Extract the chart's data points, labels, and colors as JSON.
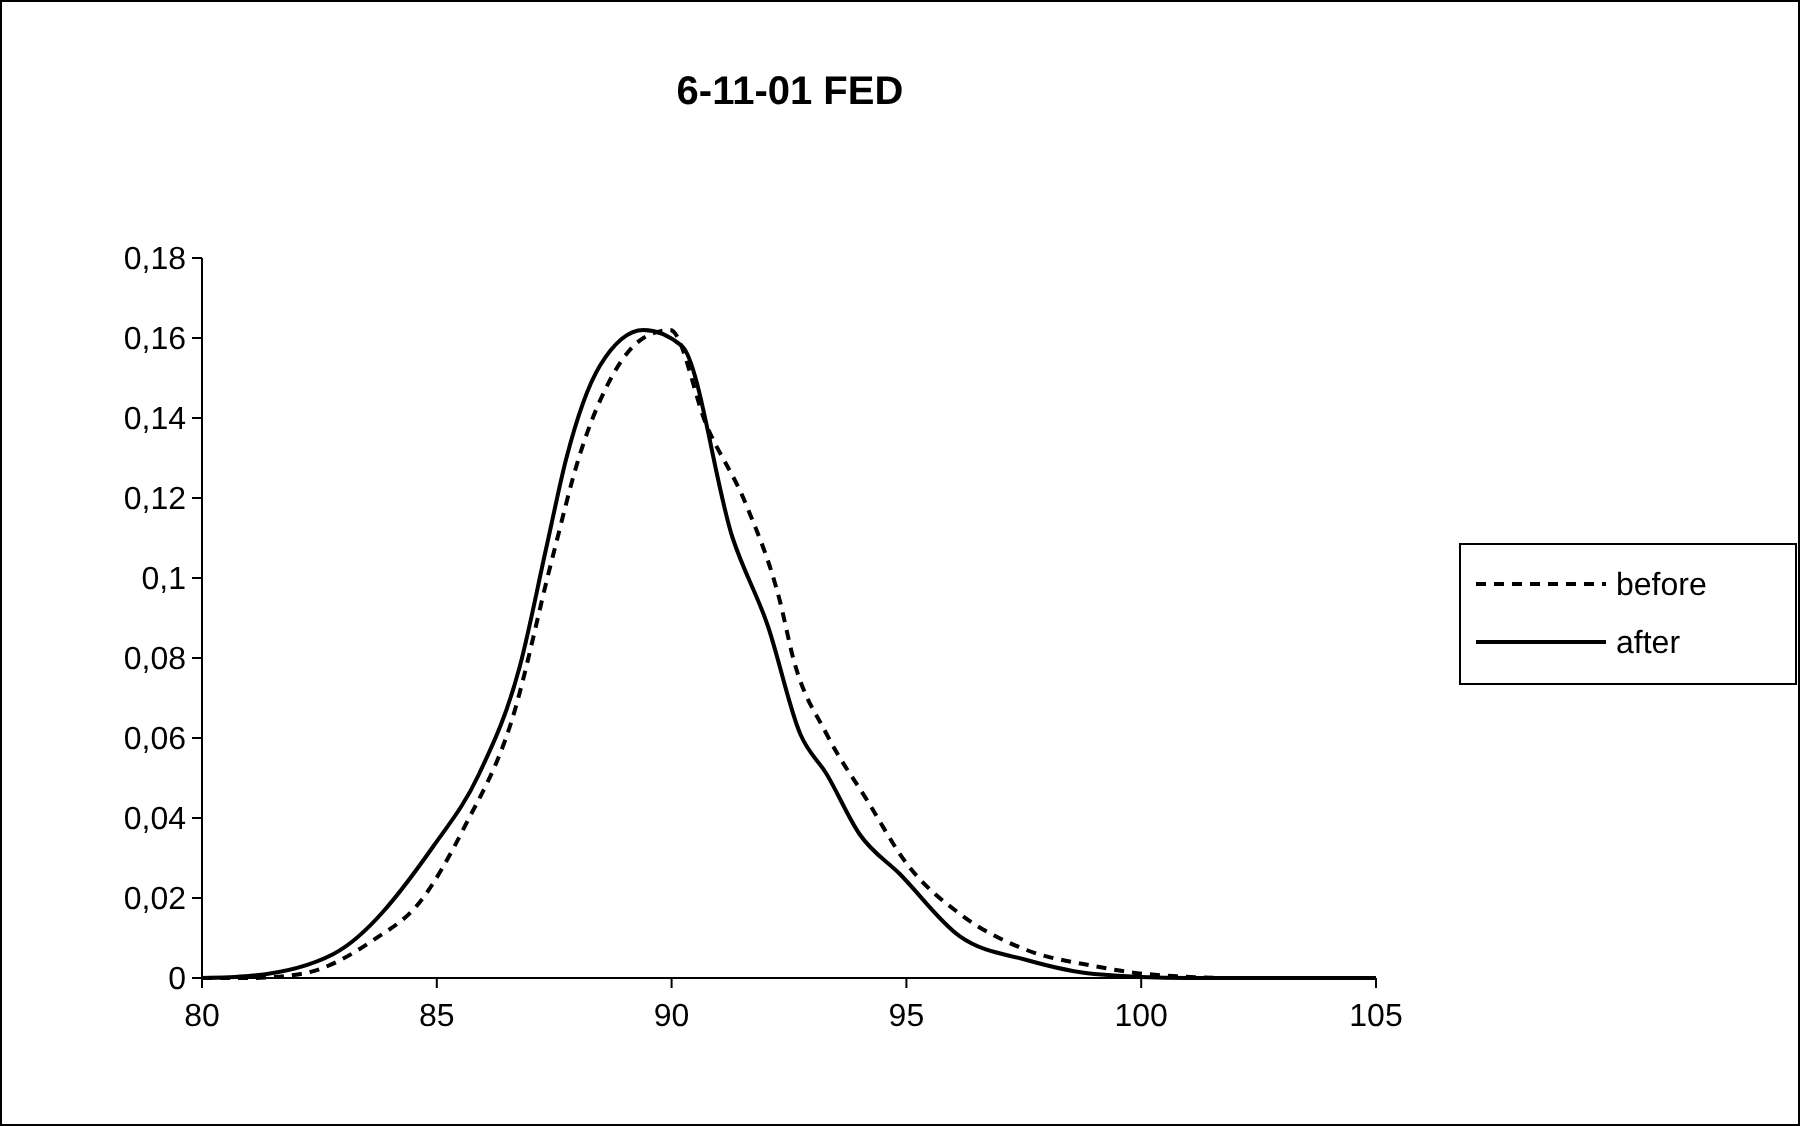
{
  "chart_data": {
    "type": "line",
    "title": "6-11-01 FED",
    "xlim": [
      80,
      105
    ],
    "xticks": [
      80,
      85,
      90,
      95,
      100,
      105
    ],
    "ylim": [
      0,
      0.18
    ],
    "yticks": [
      0,
      {
        "value": 0.02,
        "label": "0,02"
      },
      {
        "value": 0.04,
        "label": "0,04"
      },
      {
        "value": 0.06,
        "label": "0,06"
      },
      {
        "value": 0.08,
        "label": "0,08"
      },
      {
        "value": 0.1,
        "label": "0,1"
      },
      {
        "value": 0.12,
        "label": "0,12"
      },
      {
        "value": 0.14,
        "label": "0,14"
      },
      {
        "value": 0.16,
        "label": "0,16"
      },
      {
        "value": 0.18,
        "label": "0,18"
      }
    ],
    "grid": false,
    "legend": "right",
    "marker": "none",
    "series": [
      {
        "name": "before",
        "color": "#000000",
        "line_style": "dashed",
        "x": [
          80,
          81,
          82.1,
          83.65,
          84.64,
          85.6,
          86.6,
          87.45,
          88.05,
          88.76,
          89.4,
          89.97,
          90.75,
          91.6,
          92.3,
          92.6,
          93.3,
          94.16,
          95.0,
          96.14,
          97.56,
          99,
          100.1,
          102,
          105
        ],
        "values": [
          0,
          0,
          0.001,
          0.0095,
          0.019,
          0.038,
          0.0645,
          0.1045,
          0.131,
          0.151,
          0.16,
          0.162,
          0.138,
          0.118,
          0.0945,
          0.0795,
          0.061,
          0.0445,
          0.0287,
          0.016,
          0.007,
          0.003,
          0.001,
          0,
          0
        ]
      },
      {
        "name": "after",
        "color": "#000000",
        "line_style": "solid",
        "x": [
          80,
          81,
          82.8,
          84.93,
          85.9,
          86.77,
          87.34,
          87.76,
          88.47,
          89.4,
          90.22,
          91.3,
          92.05,
          92.74,
          93.3,
          94.0,
          94.86,
          96.14,
          97.56,
          99,
          101,
          105
        ],
        "values": [
          0,
          0.0005,
          0.006,
          0.033,
          0.051,
          0.078,
          0.108,
          0.13,
          0.153,
          0.162,
          0.158,
          0.11,
          0.088,
          0.061,
          0.051,
          0.036,
          0.026,
          0.0104,
          0.0045,
          0.001,
          0,
          0
        ]
      }
    ]
  }
}
